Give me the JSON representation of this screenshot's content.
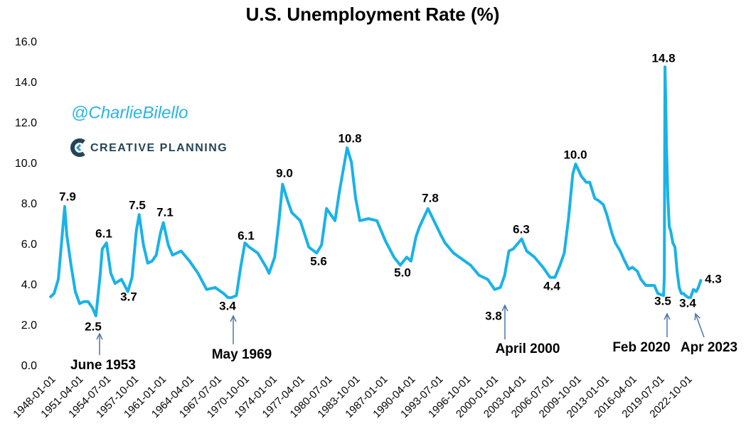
{
  "chart_data": {
    "type": "line",
    "title": "U.S. Unemployment Rate (%)",
    "watermark": "@CharlieBilello",
    "brand": "CREATIVE PLANNING",
    "xlim": [
      "1948-01-01",
      "2024-07-01"
    ],
    "ylim": [
      0,
      16
    ],
    "yticks": [
      {
        "value": 0,
        "label": "0.0"
      },
      {
        "value": 2,
        "label": "2.0"
      },
      {
        "value": 4,
        "label": "4.0"
      },
      {
        "value": 6,
        "label": "6.0"
      },
      {
        "value": 8,
        "label": "8.0"
      },
      {
        "value": 10,
        "label": "10.0"
      },
      {
        "value": 12,
        "label": "12.0"
      },
      {
        "value": 14,
        "label": "14.0"
      },
      {
        "value": 16,
        "label": "16.0"
      }
    ],
    "xticks": [
      "1948-01-01",
      "1951-04-01",
      "1954-07-01",
      "1957-10-01",
      "1961-01-01",
      "1964-04-01",
      "1967-07-01",
      "1970-10-01",
      "1974-01-01",
      "1977-04-01",
      "1980-07-01",
      "1983-10-01",
      "1987-01-01",
      "1990-04-01",
      "1993-07-01",
      "1996-10-01",
      "2000-01-01",
      "2003-04-01",
      "2006-07-01",
      "2009-10-01",
      "2013-01-01",
      "2016-04-01",
      "2019-07-01",
      "2022-10-01"
    ],
    "grid": false,
    "series": [
      {
        "name": "Unemployment Rate",
        "color": "#19b2e8",
        "x": [
          "1948-01-01",
          "1948-07-01",
          "1949-01-01",
          "1949-07-01",
          "1949-10-01",
          "1950-01-01",
          "1950-07-01",
          "1951-01-01",
          "1951-07-01",
          "1952-01-01",
          "1952-07-01",
          "1953-01-01",
          "1953-06-01",
          "1953-12-01",
          "1954-03-01",
          "1954-09-01",
          "1955-03-01",
          "1955-09-01",
          "1956-06-01",
          "1957-03-01",
          "1957-09-01",
          "1958-03-01",
          "1958-07-01",
          "1959-01-01",
          "1959-07-01",
          "1960-01-01",
          "1960-07-01",
          "1961-01-01",
          "1961-05-01",
          "1961-12-01",
          "1962-06-01",
          "1963-06-01",
          "1964-06-01",
          "1965-06-01",
          "1966-06-01",
          "1967-06-01",
          "1968-06-01",
          "1968-12-01",
          "1969-05-01",
          "1969-12-01",
          "1970-06-01",
          "1970-12-01",
          "1971-06-01",
          "1972-06-01",
          "1973-06-01",
          "1973-10-01",
          "1974-06-01",
          "1974-12-01",
          "1975-05-01",
          "1975-12-01",
          "1976-06-01",
          "1977-06-01",
          "1978-06-01",
          "1979-05-01",
          "1979-12-01",
          "1980-07-01",
          "1981-01-01",
          "1981-07-01",
          "1982-01-01",
          "1982-07-01",
          "1982-12-01",
          "1983-06-01",
          "1983-12-01",
          "1984-06-01",
          "1985-06-01",
          "1986-06-01",
          "1987-06-01",
          "1988-06-01",
          "1989-03-01",
          "1989-12-01",
          "1990-06-01",
          "1991-01-01",
          "1991-06-01",
          "1992-06-01",
          "1993-01-01",
          "1993-12-01",
          "1994-06-01",
          "1995-06-01",
          "1996-06-01",
          "1997-06-01",
          "1998-06-01",
          "1999-06-01",
          "2000-04-01",
          "2000-12-01",
          "2001-06-01",
          "2001-12-01",
          "2002-06-01",
          "2003-06-01",
          "2004-01-01",
          "2004-12-01",
          "2005-12-01",
          "2006-10-01",
          "2007-05-01",
          "2007-12-01",
          "2008-06-01",
          "2008-12-01",
          "2009-06-01",
          "2009-10-01",
          "2010-06-01",
          "2011-01-01",
          "2011-06-01",
          "2012-01-01",
          "2012-06-01",
          "2013-01-01",
          "2013-06-01",
          "2014-01-01",
          "2014-06-01",
          "2015-01-01",
          "2015-06-01",
          "2016-01-01",
          "2016-06-01",
          "2017-01-01",
          "2017-06-01",
          "2018-01-01",
          "2018-06-01",
          "2019-01-01",
          "2019-06-01",
          "2020-02-01",
          "2020-03-01",
          "2020-04-01",
          "2020-05-01",
          "2020-06-01",
          "2020-08-01",
          "2020-10-01",
          "2020-12-01",
          "2021-03-01",
          "2021-06-01",
          "2021-09-01",
          "2021-12-01",
          "2022-03-01",
          "2022-06-01",
          "2022-09-01",
          "2023-01-01",
          "2023-04-01",
          "2023-08-01",
          "2023-12-01",
          "2024-03-01",
          "2024-07-01"
        ],
        "values": [
          3.4,
          3.6,
          4.3,
          6.7,
          7.9,
          6.5,
          5.0,
          3.7,
          3.1,
          3.2,
          3.2,
          2.9,
          2.5,
          4.5,
          5.8,
          6.1,
          4.6,
          4.1,
          4.3,
          3.7,
          4.4,
          6.7,
          7.5,
          6.0,
          5.1,
          5.2,
          5.5,
          6.6,
          7.1,
          6.0,
          5.5,
          5.7,
          5.2,
          4.6,
          3.8,
          3.9,
          3.6,
          3.4,
          3.4,
          3.5,
          4.9,
          6.1,
          5.9,
          5.6,
          4.9,
          4.6,
          5.4,
          7.2,
          9.0,
          8.2,
          7.6,
          7.2,
          5.9,
          5.6,
          6.0,
          7.8,
          7.5,
          7.2,
          8.6,
          9.8,
          10.8,
          10.1,
          8.3,
          7.2,
          7.3,
          7.2,
          6.2,
          5.4,
          5.0,
          5.4,
          5.2,
          6.4,
          6.9,
          7.8,
          7.3,
          6.5,
          6.1,
          5.6,
          5.3,
          5.0,
          4.5,
          4.3,
          3.8,
          3.9,
          4.5,
          5.7,
          5.8,
          6.3,
          5.7,
          5.4,
          4.9,
          4.4,
          4.4,
          5.0,
          5.6,
          7.3,
          9.5,
          10.0,
          9.4,
          9.1,
          9.1,
          8.3,
          8.2,
          8.0,
          7.5,
          6.6,
          6.1,
          5.7,
          5.3,
          4.8,
          4.9,
          4.7,
          4.3,
          4.0,
          4.0,
          4.0,
          3.6,
          3.5,
          4.4,
          14.8,
          13.2,
          11.0,
          8.4,
          6.9,
          6.7,
          6.1,
          5.9,
          4.7,
          3.9,
          3.6,
          3.6,
          3.5,
          3.4,
          3.4,
          3.8,
          3.7,
          3.9,
          4.3
        ]
      }
    ],
    "annotations": [
      {
        "x": "1949-10-01",
        "label": "7.9"
      },
      {
        "x": "1953-06-01",
        "label": "2.5"
      },
      {
        "x": "1954-09-01",
        "label": "6.1"
      },
      {
        "x": "1957-03-01",
        "label": "3.7"
      },
      {
        "x": "1958-07-01",
        "label": "7.5"
      },
      {
        "x": "1961-05-01",
        "label": "7.1"
      },
      {
        "x": "1969-05-01",
        "label": "3.4"
      },
      {
        "x": "1970-12-01",
        "label": "6.1"
      },
      {
        "x": "1975-05-01",
        "label": "9.0"
      },
      {
        "x": "1979-05-01",
        "label": "5.6"
      },
      {
        "x": "1982-12-01",
        "label": "10.8"
      },
      {
        "x": "1989-03-01",
        "label": "5.0"
      },
      {
        "x": "1992-06-01",
        "label": "7.8"
      },
      {
        "x": "2000-04-01",
        "label": "3.8"
      },
      {
        "x": "2003-06-01",
        "label": "6.3"
      },
      {
        "x": "2006-10-01",
        "label": "4.4"
      },
      {
        "x": "2009-10-01",
        "label": "10.0"
      },
      {
        "x": "2020-04-01",
        "label": "14.8"
      },
      {
        "x": "2020-02-01",
        "label": "3.5"
      },
      {
        "x": "2023-04-01",
        "label": "3.4"
      },
      {
        "x": "2024-07-01",
        "label": "4.3"
      },
      {
        "x": "1953-06-01",
        "label": "June 1953",
        "arrow": true
      },
      {
        "x": "1969-05-01",
        "label": "May 1969",
        "arrow": true
      },
      {
        "x": "2000-04-01",
        "label": "April 2000",
        "arrow": true
      },
      {
        "x": "2020-02-01",
        "label": "Feb 2020",
        "arrow": true
      },
      {
        "x": "2023-04-01",
        "label": "Apr 2023",
        "arrow": true
      }
    ]
  }
}
